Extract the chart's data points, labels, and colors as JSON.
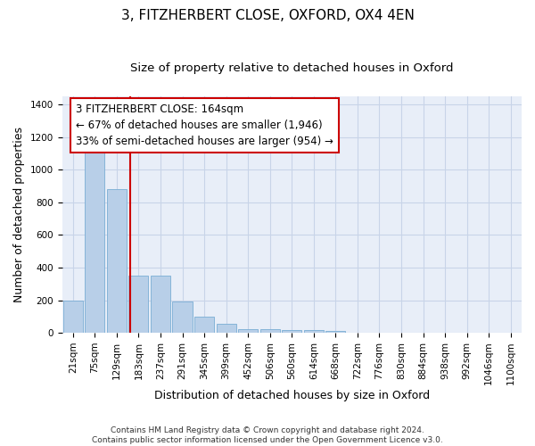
{
  "title": "3, FITZHERBERT CLOSE, OXFORD, OX4 4EN",
  "subtitle": "Size of property relative to detached houses in Oxford",
  "xlabel": "Distribution of detached houses by size in Oxford",
  "ylabel": "Number of detached properties",
  "footnote": "Contains HM Land Registry data © Crown copyright and database right 2024.\nContains public sector information licensed under the Open Government Licence v3.0.",
  "bar_color": "#b8cfe8",
  "bar_edge_color": "#7aadd4",
  "grid_color": "#c8d4e8",
  "background_color": "#e8eef8",
  "annotation_box_color": "#cc0000",
  "vline_color": "#cc0000",
  "categories": [
    "21sqm",
    "75sqm",
    "129sqm",
    "183sqm",
    "237sqm",
    "291sqm",
    "345sqm",
    "399sqm",
    "452sqm",
    "506sqm",
    "560sqm",
    "614sqm",
    "668sqm",
    "722sqm",
    "776sqm",
    "830sqm",
    "884sqm",
    "938sqm",
    "992sqm",
    "1046sqm",
    "1100sqm"
  ],
  "values": [
    200,
    1120,
    880,
    350,
    350,
    190,
    100,
    55,
    25,
    25,
    15,
    15,
    10,
    0,
    0,
    0,
    0,
    0,
    0,
    0,
    0
  ],
  "ylim": [
    0,
    1450
  ],
  "yticks": [
    0,
    200,
    400,
    600,
    800,
    1000,
    1200,
    1400
  ],
  "vline_position": 2.62,
  "annotation_text": "3 FITZHERBERT CLOSE: 164sqm\n← 67% of detached houses are smaller (1,946)\n33% of semi-detached houses are larger (954) →",
  "title_fontsize": 11,
  "subtitle_fontsize": 9.5,
  "label_fontsize": 9,
  "tick_fontsize": 7.5,
  "annot_fontsize": 8.5,
  "footnote_fontsize": 6.5
}
